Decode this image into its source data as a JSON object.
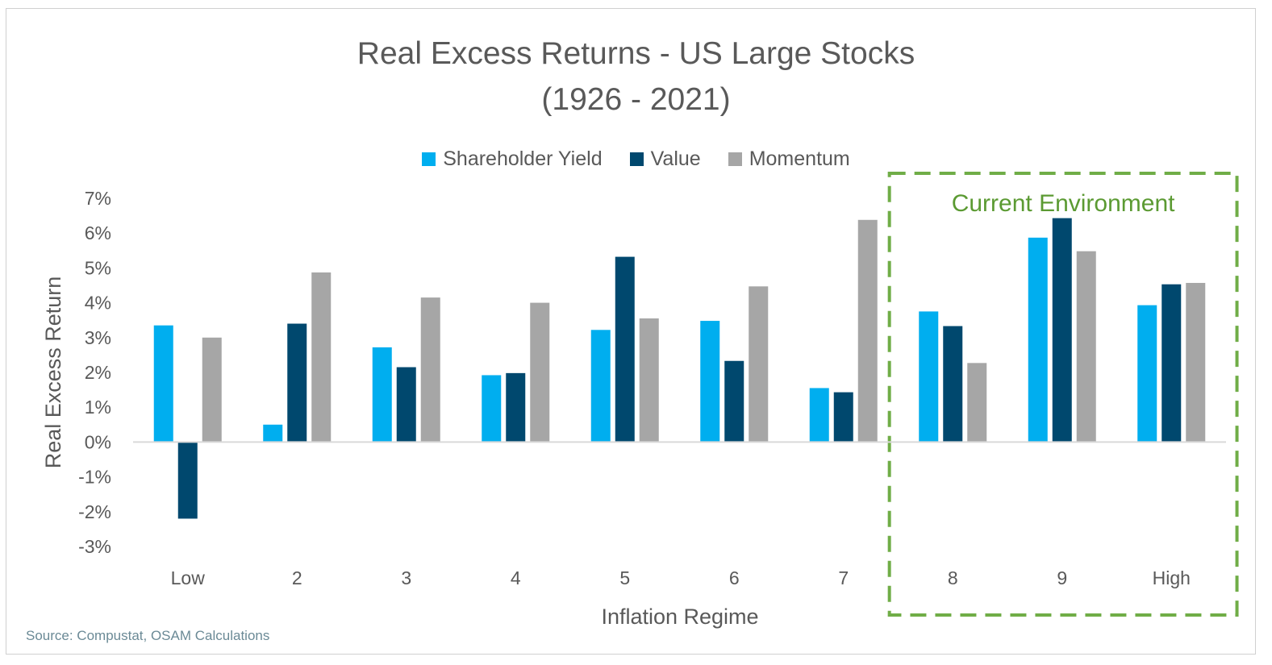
{
  "chart_data": {
    "type": "bar",
    "title_line1": "Real Excess Returns - US Large Stocks",
    "title_line2": "(1926 - 2021)",
    "xlabel": "Inflation Regime",
    "ylabel": "Real Excess Return",
    "categories": [
      "Low",
      "2",
      "3",
      "4",
      "5",
      "6",
      "7",
      "8",
      "9",
      "High"
    ],
    "series": [
      {
        "name": "Shareholder Yield",
        "color": "#00aeef",
        "values": [
          3.35,
          0.5,
          2.72,
          1.92,
          3.22,
          3.48,
          1.55,
          3.75,
          5.87,
          3.93
        ]
      },
      {
        "name": "Value",
        "color": "#00486e",
        "values": [
          -2.2,
          3.4,
          2.15,
          1.98,
          5.32,
          2.33,
          1.43,
          3.33,
          6.43,
          4.53
        ]
      },
      {
        "name": "Momentum",
        "color": "#a6a6a6",
        "values": [
          3.0,
          4.87,
          4.15,
          4.0,
          3.55,
          4.47,
          6.38,
          2.27,
          5.48,
          4.57
        ]
      }
    ],
    "ylim": [
      -3,
      7
    ],
    "yticks": [
      7,
      6,
      5,
      4,
      3,
      2,
      1,
      0,
      -1,
      -2,
      -3
    ],
    "ytick_labels": [
      "7%",
      "6%",
      "5%",
      "4%",
      "3%",
      "2%",
      "1%",
      "0%",
      "-1%",
      "-2%",
      "-3%"
    ],
    "grid": false,
    "legend_position": "top-center",
    "highlight": {
      "label": "Current Environment",
      "categories": [
        "8",
        "9",
        "High"
      ],
      "color": "#70ad47"
    }
  },
  "source": "Source: Compustat, OSAM Calculations"
}
